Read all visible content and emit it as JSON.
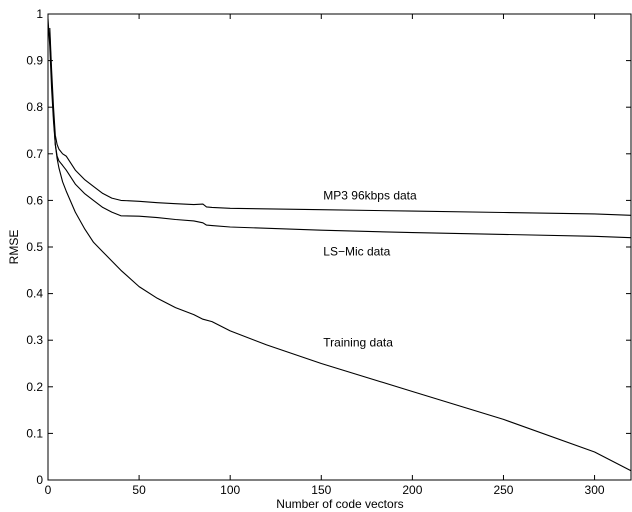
{
  "chart_data": {
    "type": "line",
    "title": "",
    "xlabel": "Number of code vectors",
    "ylabel": "RMSE",
    "xlim": [
      0,
      320
    ],
    "ylim": [
      0,
      1
    ],
    "grid": false,
    "legend": "none",
    "x_ticks": [
      0,
      50,
      100,
      150,
      200,
      250,
      300
    ],
    "y_ticks": [
      0,
      0.1,
      0.2,
      0.3,
      0.4,
      0.5,
      0.6,
      0.7,
      0.8,
      0.9,
      1
    ],
    "line_color": "#000000",
    "series": [
      {
        "x": [
          1,
          2,
          3,
          4,
          5,
          6,
          8,
          10,
          15,
          20,
          25,
          30,
          35,
          40,
          50,
          60,
          70,
          80,
          85,
          87,
          90,
          100,
          150,
          200,
          250,
          300,
          320
        ],
        "y": [
          0.97,
          0.88,
          0.8,
          0.74,
          0.72,
          0.71,
          0.7,
          0.695,
          0.665,
          0.645,
          0.63,
          0.615,
          0.605,
          0.6,
          0.598,
          0.595,
          0.593,
          0.591,
          0.592,
          0.586,
          0.585,
          0.583,
          0.58,
          0.577,
          0.574,
          0.571,
          0.568
        ]
      },
      {
        "x": [
          1,
          2,
          3,
          4,
          5,
          6,
          8,
          10,
          15,
          20,
          25,
          30,
          35,
          40,
          50,
          60,
          70,
          80,
          85,
          87,
          90,
          100,
          150,
          200,
          250,
          300,
          320
        ],
        "y": [
          0.96,
          0.86,
          0.78,
          0.72,
          0.695,
          0.685,
          0.675,
          0.665,
          0.635,
          0.615,
          0.6,
          0.585,
          0.575,
          0.567,
          0.566,
          0.563,
          0.559,
          0.556,
          0.552,
          0.547,
          0.546,
          0.543,
          0.536,
          0.531,
          0.527,
          0.523,
          0.52
        ]
      },
      {
        "x": [
          0,
          1,
          2,
          3,
          4,
          5,
          6,
          8,
          10,
          15,
          20,
          25,
          30,
          35,
          40,
          50,
          60,
          70,
          80,
          85,
          90,
          100,
          120,
          150,
          200,
          250,
          300,
          320
        ],
        "y": [
          0.99,
          0.93,
          0.84,
          0.77,
          0.72,
          0.69,
          0.67,
          0.64,
          0.62,
          0.575,
          0.54,
          0.51,
          0.49,
          0.47,
          0.45,
          0.415,
          0.39,
          0.37,
          0.355,
          0.345,
          0.34,
          0.32,
          0.29,
          0.25,
          0.19,
          0.13,
          0.06,
          0.02
        ]
      }
    ],
    "annotations": [
      {
        "text": "MP3 96kbps data",
        "x": 150,
        "y": 0.61
      },
      {
        "text": "LS−Mic data",
        "x": 150,
        "y": 0.49
      },
      {
        "text": "Training data",
        "x": 150,
        "y": 0.295
      }
    ]
  }
}
